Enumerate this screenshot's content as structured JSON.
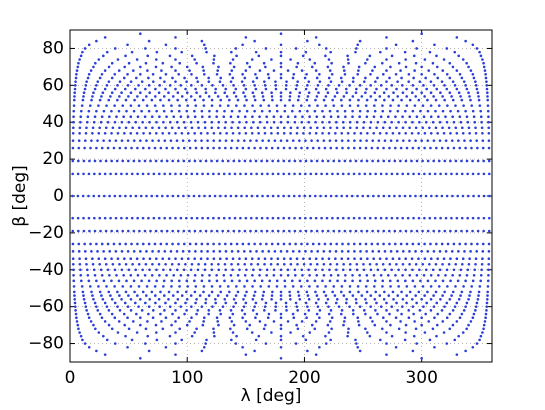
{
  "chart_data": {
    "type": "scatter",
    "xlabel": "λ [deg]",
    "ylabel": "β [deg]",
    "xlim": [
      0,
      360
    ],
    "xticks": [
      0,
      100,
      200,
      300
    ],
    "ylim": [
      -90,
      90
    ],
    "yticks": [
      {
        "value": -80,
        "label": "−80"
      },
      {
        "value": -60,
        "label": "−60"
      },
      {
        "value": -40,
        "label": "−40"
      },
      {
        "value": -20,
        "label": "−20"
      },
      0,
      20,
      40,
      60,
      80
    ],
    "grid": true,
    "color": "#2b3fd6",
    "rings": [
      {
        "beta": -88,
        "n": 3
      },
      {
        "beta": -86,
        "n": 6
      },
      {
        "beta": -84,
        "n": 8
      },
      {
        "beta": -82,
        "n": 11
      },
      {
        "beta": -80,
        "n": 14
      },
      {
        "beta": -78,
        "n": 17
      },
      {
        "beta": -76,
        "n": 19
      },
      {
        "beta": -74,
        "n": 22
      },
      {
        "beta": -72,
        "n": 25
      },
      {
        "beta": -70,
        "n": 27
      },
      {
        "beta": -68,
        "n": 30
      },
      {
        "beta": -66,
        "n": 33
      },
      {
        "beta": -64,
        "n": 35
      },
      {
        "beta": -62,
        "n": 38
      },
      {
        "beta": -60,
        "n": 40
      },
      {
        "beta": -58,
        "n": 42
      },
      {
        "beta": -56,
        "n": 45
      },
      {
        "beta": -54,
        "n": 47
      },
      {
        "beta": -52,
        "n": 49
      },
      {
        "beta": -49,
        "n": 52
      },
      {
        "beta": -46,
        "n": 56
      },
      {
        "beta": -43,
        "n": 59
      },
      {
        "beta": -40,
        "n": 61
      },
      {
        "beta": -37,
        "n": 64
      },
      {
        "beta": -34,
        "n": 66
      },
      {
        "beta": -30,
        "n": 69
      },
      {
        "beta": -26,
        "n": 72
      },
      {
        "beta": -19,
        "n": 76
      },
      {
        "beta": -12,
        "n": 78
      },
      {
        "beta": 0,
        "n": 80
      },
      {
        "beta": 12,
        "n": 78
      },
      {
        "beta": 19,
        "n": 76
      },
      {
        "beta": 26,
        "n": 72
      },
      {
        "beta": 30,
        "n": 69
      },
      {
        "beta": 34,
        "n": 66
      },
      {
        "beta": 37,
        "n": 64
      },
      {
        "beta": 40,
        "n": 61
      },
      {
        "beta": 43,
        "n": 59
      },
      {
        "beta": 46,
        "n": 56
      },
      {
        "beta": 49,
        "n": 52
      },
      {
        "beta": 52,
        "n": 49
      },
      {
        "beta": 54,
        "n": 47
      },
      {
        "beta": 56,
        "n": 45
      },
      {
        "beta": 58,
        "n": 42
      },
      {
        "beta": 60,
        "n": 40
      },
      {
        "beta": 62,
        "n": 38
      },
      {
        "beta": 64,
        "n": 35
      },
      {
        "beta": 66,
        "n": 33
      },
      {
        "beta": 68,
        "n": 30
      },
      {
        "beta": 70,
        "n": 27
      },
      {
        "beta": 72,
        "n": 25
      },
      {
        "beta": 74,
        "n": 22
      },
      {
        "beta": 76,
        "n": 19
      },
      {
        "beta": 78,
        "n": 17
      },
      {
        "beta": 80,
        "n": 14
      },
      {
        "beta": 82,
        "n": 11
      },
      {
        "beta": 84,
        "n": 8
      },
      {
        "beta": 86,
        "n": 6
      },
      {
        "beta": 88,
        "n": 3
      }
    ]
  }
}
